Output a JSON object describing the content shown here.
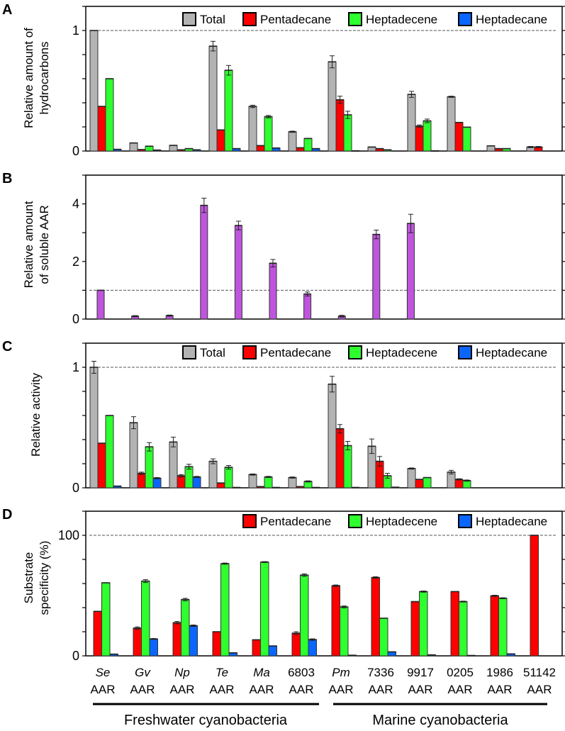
{
  "colors": {
    "Total": "#b3b3b3",
    "Pentadecane": "#ff0000",
    "Heptadecene": "#2eff2e",
    "Heptadecane": "#0a66ff",
    "AAR": "#bf55dd"
  },
  "categories": [
    {
      "name": "Se",
      "suffix": "AAR",
      "italic": true
    },
    {
      "name": "Gv",
      "suffix": "AAR",
      "italic": true
    },
    {
      "name": "Np",
      "suffix": "AAR",
      "italic": true
    },
    {
      "name": "Te",
      "suffix": "AAR",
      "italic": true
    },
    {
      "name": "Ma",
      "suffix": "AAR",
      "italic": true
    },
    {
      "name": "6803",
      "suffix": "AAR",
      "italic": false
    },
    {
      "name": "Pm",
      "suffix": "AAR",
      "italic": true
    },
    {
      "name": "7336",
      "suffix": "AAR",
      "italic": false
    },
    {
      "name": "9917",
      "suffix": "AAR",
      "italic": false
    },
    {
      "name": "0205",
      "suffix": "AAR",
      "italic": false
    },
    {
      "name": "1986",
      "suffix": "AAR",
      "italic": false
    },
    {
      "name": "51142",
      "suffix": "AAR",
      "italic": false
    }
  ],
  "groups": [
    {
      "label": "Freshwater cyanobacteria"
    },
    {
      "label": "Marine cyanobacteria"
    }
  ],
  "chart_data": [
    {
      "panel": "A",
      "type": "bar",
      "ylabel": [
        "Relative amount of",
        "hydrocarbons"
      ],
      "ylim": [
        0,
        1.2
      ],
      "tick_labels": [
        "0",
        "1"
      ],
      "reference_line": 1,
      "series": [
        {
          "name": "Total",
          "values": [
            1.0,
            0.067,
            0.047,
            0.87,
            0.37,
            0.16,
            0.74,
            0.033,
            0.47,
            0.45,
            0.043,
            0.033
          ],
          "errors": [
            0,
            0,
            0,
            0.04,
            0.01,
            0.005,
            0.05,
            0,
            0.025,
            0.005,
            0,
            0.005
          ]
        },
        {
          "name": "Pentadecane",
          "values": [
            0.37,
            0.012,
            0.01,
            0.175,
            0.045,
            0.027,
            0.425,
            0.02,
            0.206,
            0.237,
            0.02,
            0.033
          ],
          "errors": [
            0,
            0,
            0,
            0,
            0,
            0,
            0.03,
            0,
            0.01,
            0,
            0,
            0.005
          ]
        },
        {
          "name": "Heptadecene",
          "values": [
            0.6,
            0.04,
            0.02,
            0.67,
            0.285,
            0.104,
            0.3,
            0.01,
            0.25,
            0.198,
            0.02,
            0
          ],
          "errors": [
            0,
            0,
            0,
            0.04,
            0.01,
            0,
            0.03,
            0,
            0.015,
            0,
            0,
            0
          ]
        },
        {
          "name": "Heptadecane",
          "values": [
            0.014,
            0.008,
            0.01,
            0.02,
            0.025,
            0.02,
            0.002,
            0,
            0.002,
            0,
            0,
            0
          ],
          "errors": [
            0,
            0,
            0,
            0,
            0,
            0,
            0,
            0,
            0,
            0,
            0,
            0
          ]
        }
      ]
    },
    {
      "panel": "B",
      "type": "bar",
      "ylabel": [
        "Relative amount",
        "of soluble AAR"
      ],
      "ylim": [
        0,
        5
      ],
      "tick_labels": [
        "0",
        "2",
        "4"
      ],
      "reference_line": 1,
      "categories": [
        "Se",
        "Gv",
        "Np",
        "Te",
        "Ma",
        "6803",
        "Pm",
        "7336",
        "9917",
        "0205"
      ],
      "series": [
        {
          "name": "AAR",
          "values": [
            1.0,
            0.1,
            0.12,
            3.95,
            3.25,
            1.94,
            0.87,
            0.1,
            2.94,
            3.32
          ],
          "errors": [
            0,
            0.02,
            0.02,
            0.25,
            0.15,
            0.13,
            0.07,
            0.03,
            0.15,
            0.32
          ]
        }
      ]
    },
    {
      "panel": "C",
      "type": "bar",
      "ylabel": [
        "Relative activity"
      ],
      "ylim": [
        0,
        1.2
      ],
      "tick_labels": [
        "0",
        "1"
      ],
      "reference_line": 1,
      "series": [
        {
          "name": "Total",
          "values": [
            1.0,
            0.54,
            0.38,
            0.22,
            0.11,
            0.085,
            0.86,
            0.345,
            0.16,
            0.13,
            0,
            0
          ],
          "errors": [
            0.05,
            0.05,
            0.04,
            0.02,
            0.005,
            0.005,
            0.065,
            0.06,
            0.005,
            0.015,
            0,
            0
          ]
        },
        {
          "name": "Pentadecane",
          "values": [
            0.37,
            0.12,
            0.1,
            0.04,
            0.01,
            0.01,
            0.49,
            0.22,
            0.07,
            0.07,
            0,
            0
          ],
          "errors": [
            0,
            0.01,
            0.01,
            0,
            0,
            0,
            0.035,
            0.04,
            0,
            0.005,
            0,
            0
          ]
        },
        {
          "name": "Heptadecene",
          "values": [
            0.6,
            0.34,
            0.175,
            0.17,
            0.09,
            0.053,
            0.35,
            0.1,
            0.085,
            0.06,
            0,
            0
          ],
          "errors": [
            0,
            0.035,
            0.02,
            0.015,
            0.005,
            0.005,
            0.035,
            0.02,
            0,
            0.005,
            0,
            0
          ]
        },
        {
          "name": "Heptadecane",
          "values": [
            0.014,
            0.08,
            0.09,
            0.003,
            0.003,
            0.003,
            0.003,
            0.005,
            0,
            0,
            0,
            0
          ],
          "errors": [
            0,
            0.005,
            0.005,
            0,
            0,
            0,
            0,
            0,
            0,
            0,
            0,
            0
          ]
        }
      ]
    },
    {
      "panel": "D",
      "type": "bar",
      "ylabel": [
        "Substrate",
        "specificity (%)"
      ],
      "ylim": [
        0,
        120
      ],
      "tick_labels": [
        "0",
        "100"
      ],
      "reference_line": 100,
      "series": [
        {
          "name": "Pentadecane",
          "values": [
            36.9,
            23,
            27.5,
            20,
            13.3,
            18.8,
            58.2,
            65,
            45,
            53.3,
            49.8,
            100
          ],
          "errors": [
            0,
            1,
            1,
            0,
            0,
            1.2,
            0.6,
            0.6,
            0,
            0,
            0.5,
            0
          ]
        },
        {
          "name": "Heptadecene",
          "values": [
            60.6,
            62,
            46.7,
            76.5,
            77.8,
            67,
            40.6,
            31.2,
            53.3,
            45,
            47.8,
            0
          ],
          "errors": [
            0,
            1.2,
            1,
            0.5,
            0.4,
            1,
            0.8,
            0,
            0.5,
            0.4,
            0.4,
            0
          ]
        },
        {
          "name": "Heptadecane",
          "values": [
            1.4,
            14,
            25,
            2.5,
            8.2,
            13.5,
            0.5,
            3.3,
            0.8,
            0.3,
            1.6,
            0
          ],
          "errors": [
            0,
            0.4,
            0.6,
            0,
            0,
            0.6,
            0,
            0,
            0,
            0,
            0,
            0
          ]
        }
      ]
    }
  ]
}
